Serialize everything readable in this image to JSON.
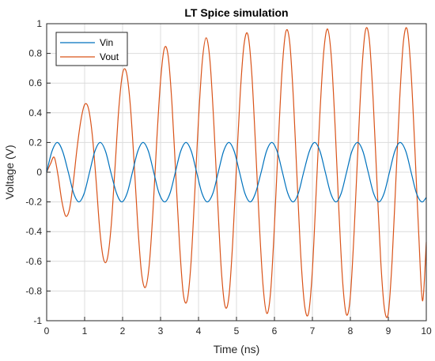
{
  "chart_data": {
    "type": "line",
    "title": "LT Spice simulation",
    "xlabel": "Time (ns)",
    "ylabel": "Voltage (V)",
    "xlim": [
      0,
      10
    ],
    "ylim": [
      -1,
      1
    ],
    "x_ticks": [
      0,
      1,
      2,
      3,
      4,
      5,
      6,
      7,
      8,
      9,
      10
    ],
    "y_ticks": [
      -1,
      -0.8,
      -0.6,
      -0.4,
      -0.2,
      0,
      0.2,
      0.4,
      0.6,
      0.8,
      1
    ],
    "x_tick_labels": [
      "0",
      "1",
      "2",
      "3",
      "4",
      "5",
      "6",
      "7",
      "8",
      "9",
      "10"
    ],
    "y_tick_labels": [
      "-1",
      "-0.8",
      "-0.6",
      "-0.4",
      "-0.2",
      "0",
      "0.2",
      "0.4",
      "0.6",
      "0.8",
      "1"
    ],
    "grid": true,
    "legend_position": "top-left",
    "series": [
      {
        "name": "Vin",
        "color": "#0072BD",
        "x": [
          0,
          0.14,
          0.28,
          0.42,
          0.57,
          0.71,
          0.85,
          0.99,
          1.13,
          1.27,
          1.41,
          1.55,
          1.69,
          1.84,
          1.98,
          2.12,
          2.26,
          2.4,
          2.54,
          2.68,
          2.82,
          2.96,
          3.11,
          3.25,
          3.39,
          3.53,
          3.67,
          3.81,
          3.95,
          4.09,
          4.23,
          4.38,
          4.52,
          4.66,
          4.8,
          4.94,
          5.08,
          5.22,
          5.36,
          5.5,
          5.65,
          5.79,
          5.93,
          6.07,
          6.21,
          6.35,
          6.49,
          6.63,
          6.77,
          6.92,
          7.06,
          7.2,
          7.34,
          7.48,
          7.62,
          7.76,
          7.9,
          8.04,
          8.19,
          8.33,
          8.47,
          8.61,
          8.75,
          8.89,
          9.03,
          9.17,
          9.31,
          9.46,
          9.6,
          9.74,
          9.88,
          10
        ],
        "y": [
          0,
          0.141,
          0.2,
          0.141,
          0,
          -0.141,
          -0.2,
          -0.141,
          0,
          0.141,
          0.2,
          0.141,
          0,
          -0.141,
          -0.2,
          -0.141,
          0,
          0.141,
          0.2,
          0.141,
          0,
          -0.141,
          -0.2,
          -0.141,
          0,
          0.141,
          0.2,
          0.141,
          0,
          -0.141,
          -0.2,
          -0.141,
          0,
          0.141,
          0.2,
          0.141,
          0,
          -0.141,
          -0.2,
          -0.141,
          0,
          0.141,
          0.2,
          0.141,
          0,
          -0.141,
          -0.2,
          -0.141,
          0,
          0.141,
          0.2,
          0.141,
          0,
          -0.141,
          -0.2,
          -0.141,
          0,
          0.141,
          0.2,
          0.141,
          0,
          -0.141,
          -0.2,
          -0.141,
          0,
          0.141,
          0.2,
          0.141,
          0,
          -0.141,
          -0.2,
          -0.17
        ]
      },
      {
        "name": "Vout",
        "color": "#D95319",
        "x": [
          0,
          0.1,
          0.2,
          0.3,
          0.4,
          0.5,
          0.6,
          0.7,
          0.8,
          0.9,
          1.0,
          1.1,
          1.2,
          1.3,
          1.4,
          1.5,
          1.6,
          1.7,
          1.8,
          1.9,
          2.0,
          2.1,
          2.2,
          2.3,
          2.4,
          2.5,
          2.6,
          2.7,
          2.8,
          2.9,
          3.0,
          3.1,
          3.2,
          3.3,
          3.4,
          3.5,
          3.6,
          3.7,
          3.8,
          3.9,
          4.0,
          4.1,
          4.2,
          4.3,
          4.4,
          4.5,
          4.6,
          4.7,
          4.8,
          4.9,
          5.0,
          5.1,
          5.2,
          5.3,
          5.4,
          5.5,
          5.6,
          5.7,
          5.8,
          5.9,
          6.0,
          6.1,
          6.2,
          6.3,
          6.4,
          6.5,
          6.6,
          6.7,
          6.8,
          6.9,
          7.0,
          7.1,
          7.2,
          7.3,
          7.4,
          7.5,
          7.6,
          7.7,
          7.8,
          7.9,
          8.0,
          8.1,
          8.2,
          8.3,
          8.4,
          8.5,
          8.6,
          8.7,
          8.8,
          8.9,
          9.0,
          9.1,
          9.2,
          9.3,
          9.4,
          9.5,
          9.6,
          9.7,
          9.8,
          9.9,
          10.0
        ],
        "y": [
          0.0,
          0.056,
          0.1,
          -0.022,
          -0.195,
          -0.295,
          -0.25,
          -0.071,
          0.16,
          0.347,
          0.455,
          0.43,
          0.255,
          -0.049,
          -0.391,
          -0.587,
          -0.58,
          -0.359,
          0.029,
          0.427,
          0.665,
          0.673,
          0.461,
          0.079,
          -0.357,
          -0.681,
          -0.776,
          -0.629,
          -0.264,
          0.213,
          0.616,
          0.834,
          0.783,
          0.463,
          -0.011,
          -0.485,
          -0.82,
          -0.864,
          -0.619,
          -0.145,
          0.357,
          0.748,
          0.905,
          0.755,
          0.345,
          -0.175,
          -0.656,
          -0.903,
          -0.839,
          -0.475,
          0.043,
          0.534,
          0.861,
          0.927,
          0.675,
          0.191,
          -0.34,
          -0.764,
          -0.951,
          -0.802,
          -0.359,
          0.191,
          0.681,
          0.946,
          0.879,
          0.492,
          -0.067,
          -0.59,
          -0.907,
          -0.947,
          -0.656,
          -0.128,
          0.407,
          0.815,
          0.964,
          0.769,
          0.297,
          -0.272,
          -0.748,
          -0.961,
          -0.833,
          -0.395,
          0.168,
          0.676,
          0.958,
          0.89,
          0.488,
          -0.067,
          -0.598,
          -0.924,
          -0.946,
          -0.592,
          -0.047,
          0.496,
          0.886,
          0.958,
          0.667,
          0.151,
          -0.413,
          -0.866,
          -0.47
        ]
      }
    ]
  }
}
